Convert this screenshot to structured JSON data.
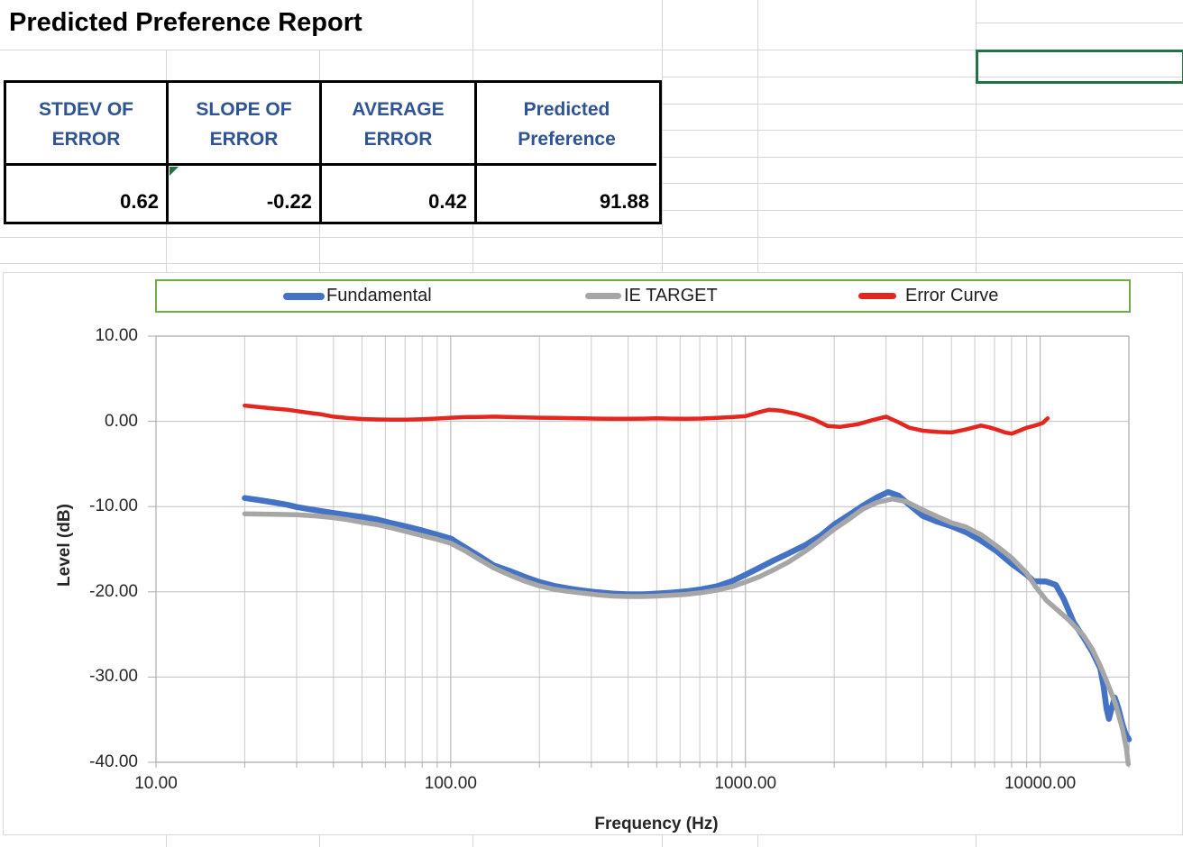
{
  "report": {
    "title": "Predicted Preference Report",
    "metrics": {
      "headers": [
        [
          "STDEV OF",
          "ERROR"
        ],
        [
          "SLOPE OF",
          "ERROR"
        ],
        [
          "AVERAGE",
          "ERROR"
        ],
        [
          "Predicted",
          "Preference"
        ]
      ],
      "values": [
        "0.62",
        "-0.22",
        "0.42",
        "91.88"
      ]
    },
    "colors": {
      "header_text": "#2F5496",
      "selection_green": "#217346",
      "error_indicator_green": "#217346"
    }
  },
  "chart_data": {
    "type": "line",
    "title": "",
    "xlabel": "Frequency (Hz)",
    "ylabel": "Level (dB)",
    "x_scale": "log",
    "xlim": [
      10,
      20000
    ],
    "ylim": [
      -40,
      10
    ],
    "grid": true,
    "legend_position": "top",
    "legend_border_color": "#70AD47",
    "x_ticks": [
      10,
      100,
      1000,
      10000
    ],
    "x_tick_labels": [
      "10.00",
      "100.00",
      "1000.00",
      "10000.00"
    ],
    "y_ticks": [
      10,
      0,
      -10,
      -20,
      -30,
      -40
    ],
    "y_tick_labels": [
      "10.00",
      "0.00",
      "-10.00",
      "-20.00",
      "-30.00",
      "-40.00"
    ],
    "series": [
      {
        "name": "Fundamental",
        "color": "#4472C4",
        "width": 6.5,
        "points": [
          [
            20,
            -9.0
          ],
          [
            22,
            -9.2
          ],
          [
            25,
            -9.5
          ],
          [
            28,
            -9.8
          ],
          [
            30,
            -10.05
          ],
          [
            33,
            -10.3
          ],
          [
            36,
            -10.5
          ],
          [
            40,
            -10.75
          ],
          [
            45,
            -11.0
          ],
          [
            50,
            -11.2
          ],
          [
            56,
            -11.5
          ],
          [
            63,
            -11.95
          ],
          [
            71,
            -12.35
          ],
          [
            80,
            -12.8
          ],
          [
            90,
            -13.3
          ],
          [
            100,
            -13.75
          ],
          [
            112,
            -14.8
          ],
          [
            125,
            -15.8
          ],
          [
            140,
            -16.9
          ],
          [
            160,
            -17.6
          ],
          [
            180,
            -18.3
          ],
          [
            200,
            -18.85
          ],
          [
            224,
            -19.3
          ],
          [
            250,
            -19.6
          ],
          [
            280,
            -19.85
          ],
          [
            315,
            -20.05
          ],
          [
            355,
            -20.2
          ],
          [
            400,
            -20.3
          ],
          [
            450,
            -20.3
          ],
          [
            500,
            -20.2
          ],
          [
            560,
            -20.1
          ],
          [
            630,
            -19.95
          ],
          [
            710,
            -19.7
          ],
          [
            800,
            -19.35
          ],
          [
            900,
            -18.75
          ],
          [
            1000,
            -18.0
          ],
          [
            1120,
            -17.15
          ],
          [
            1250,
            -16.3
          ],
          [
            1400,
            -15.5
          ],
          [
            1600,
            -14.5
          ],
          [
            1800,
            -13.4
          ],
          [
            2000,
            -12.1
          ],
          [
            2240,
            -11.0
          ],
          [
            2500,
            -9.9
          ],
          [
            2800,
            -8.9
          ],
          [
            3050,
            -8.3
          ],
          [
            3300,
            -8.7
          ],
          [
            3600,
            -9.8
          ],
          [
            4000,
            -11.1
          ],
          [
            4500,
            -11.8
          ],
          [
            5000,
            -12.3
          ],
          [
            5600,
            -13.0
          ],
          [
            6300,
            -14.0
          ],
          [
            7100,
            -15.2
          ],
          [
            8000,
            -16.7
          ],
          [
            9000,
            -18.0
          ],
          [
            9500,
            -18.75
          ],
          [
            10500,
            -18.8
          ],
          [
            11300,
            -19.2
          ],
          [
            12000,
            -20.8
          ],
          [
            13000,
            -23.6
          ],
          [
            14000,
            -25.3
          ],
          [
            15000,
            -27.0
          ],
          [
            16000,
            -29.0
          ],
          [
            16400,
            -31.0
          ],
          [
            16800,
            -33.7
          ],
          [
            17100,
            -34.9
          ],
          [
            17500,
            -33.6
          ],
          [
            17900,
            -32.4
          ],
          [
            18400,
            -33.6
          ],
          [
            19000,
            -35.5
          ],
          [
            19500,
            -36.7
          ],
          [
            20000,
            -37.3
          ]
        ]
      },
      {
        "name": "IE TARGET",
        "color": "#A6A6A6",
        "width": 5.5,
        "points": [
          [
            20,
            -10.85
          ],
          [
            25,
            -10.9
          ],
          [
            30,
            -10.95
          ],
          [
            35,
            -11.1
          ],
          [
            40,
            -11.3
          ],
          [
            45,
            -11.55
          ],
          [
            50,
            -11.85
          ],
          [
            56,
            -12.1
          ],
          [
            63,
            -12.5
          ],
          [
            71,
            -12.95
          ],
          [
            80,
            -13.4
          ],
          [
            90,
            -13.85
          ],
          [
            100,
            -14.3
          ],
          [
            112,
            -15.2
          ],
          [
            125,
            -16.2
          ],
          [
            140,
            -17.2
          ],
          [
            160,
            -18.1
          ],
          [
            180,
            -18.8
          ],
          [
            200,
            -19.3
          ],
          [
            224,
            -19.7
          ],
          [
            250,
            -19.95
          ],
          [
            280,
            -20.15
          ],
          [
            315,
            -20.35
          ],
          [
            355,
            -20.5
          ],
          [
            400,
            -20.55
          ],
          [
            450,
            -20.55
          ],
          [
            500,
            -20.5
          ],
          [
            560,
            -20.4
          ],
          [
            630,
            -20.3
          ],
          [
            710,
            -20.1
          ],
          [
            800,
            -19.8
          ],
          [
            900,
            -19.4
          ],
          [
            1000,
            -18.85
          ],
          [
            1120,
            -18.2
          ],
          [
            1250,
            -17.4
          ],
          [
            1400,
            -16.5
          ],
          [
            1600,
            -15.2
          ],
          [
            1800,
            -13.9
          ],
          [
            2000,
            -12.65
          ],
          [
            2240,
            -11.5
          ],
          [
            2500,
            -10.3
          ],
          [
            2800,
            -9.5
          ],
          [
            3150,
            -9.1
          ],
          [
            3500,
            -9.4
          ],
          [
            4000,
            -10.4
          ],
          [
            4500,
            -11.2
          ],
          [
            5000,
            -11.9
          ],
          [
            5600,
            -12.4
          ],
          [
            6300,
            -13.3
          ],
          [
            7100,
            -14.6
          ],
          [
            8000,
            -16.0
          ],
          [
            9000,
            -17.8
          ],
          [
            9700,
            -19.5
          ],
          [
            10500,
            -21.0
          ],
          [
            11500,
            -22.2
          ],
          [
            12500,
            -23.3
          ],
          [
            14000,
            -25.1
          ],
          [
            15000,
            -26.7
          ],
          [
            16000,
            -28.7
          ],
          [
            17000,
            -30.9
          ],
          [
            18000,
            -33.1
          ],
          [
            19000,
            -36.0
          ],
          [
            19600,
            -38.3
          ],
          [
            19900,
            -40.2
          ]
        ]
      },
      {
        "name": "Error Curve",
        "color": "#E5261F",
        "width": 4.5,
        "points": [
          [
            20,
            1.85
          ],
          [
            22,
            1.7
          ],
          [
            25,
            1.5
          ],
          [
            28,
            1.35
          ],
          [
            30,
            1.2
          ],
          [
            33,
            1.0
          ],
          [
            36,
            0.85
          ],
          [
            40,
            0.55
          ],
          [
            45,
            0.38
          ],
          [
            50,
            0.28
          ],
          [
            56,
            0.22
          ],
          [
            63,
            0.2
          ],
          [
            71,
            0.2
          ],
          [
            80,
            0.25
          ],
          [
            90,
            0.33
          ],
          [
            100,
            0.42
          ],
          [
            112,
            0.5
          ],
          [
            125,
            0.52
          ],
          [
            140,
            0.55
          ],
          [
            160,
            0.5
          ],
          [
            180,
            0.45
          ],
          [
            200,
            0.42
          ],
          [
            224,
            0.4
          ],
          [
            250,
            0.38
          ],
          [
            280,
            0.35
          ],
          [
            315,
            0.32
          ],
          [
            355,
            0.3
          ],
          [
            400,
            0.3
          ],
          [
            450,
            0.32
          ],
          [
            500,
            0.35
          ],
          [
            560,
            0.32
          ],
          [
            630,
            0.3
          ],
          [
            710,
            0.33
          ],
          [
            800,
            0.4
          ],
          [
            900,
            0.5
          ],
          [
            1000,
            0.6
          ],
          [
            1120,
            1.1
          ],
          [
            1200,
            1.35
          ],
          [
            1320,
            1.25
          ],
          [
            1500,
            0.85
          ],
          [
            1700,
            0.25
          ],
          [
            1900,
            -0.55
          ],
          [
            2100,
            -0.65
          ],
          [
            2400,
            -0.35
          ],
          [
            2700,
            0.15
          ],
          [
            3000,
            0.55
          ],
          [
            3300,
            -0.1
          ],
          [
            3600,
            -0.75
          ],
          [
            4000,
            -1.1
          ],
          [
            4500,
            -1.25
          ],
          [
            5000,
            -1.3
          ],
          [
            5600,
            -0.95
          ],
          [
            6300,
            -0.5
          ],
          [
            6700,
            -0.7
          ],
          [
            7100,
            -0.95
          ],
          [
            7600,
            -1.3
          ],
          [
            8000,
            -1.45
          ],
          [
            8500,
            -1.1
          ],
          [
            9000,
            -0.75
          ],
          [
            9600,
            -0.5
          ],
          [
            10200,
            -0.2
          ],
          [
            10600,
            0.35
          ]
        ]
      }
    ]
  }
}
